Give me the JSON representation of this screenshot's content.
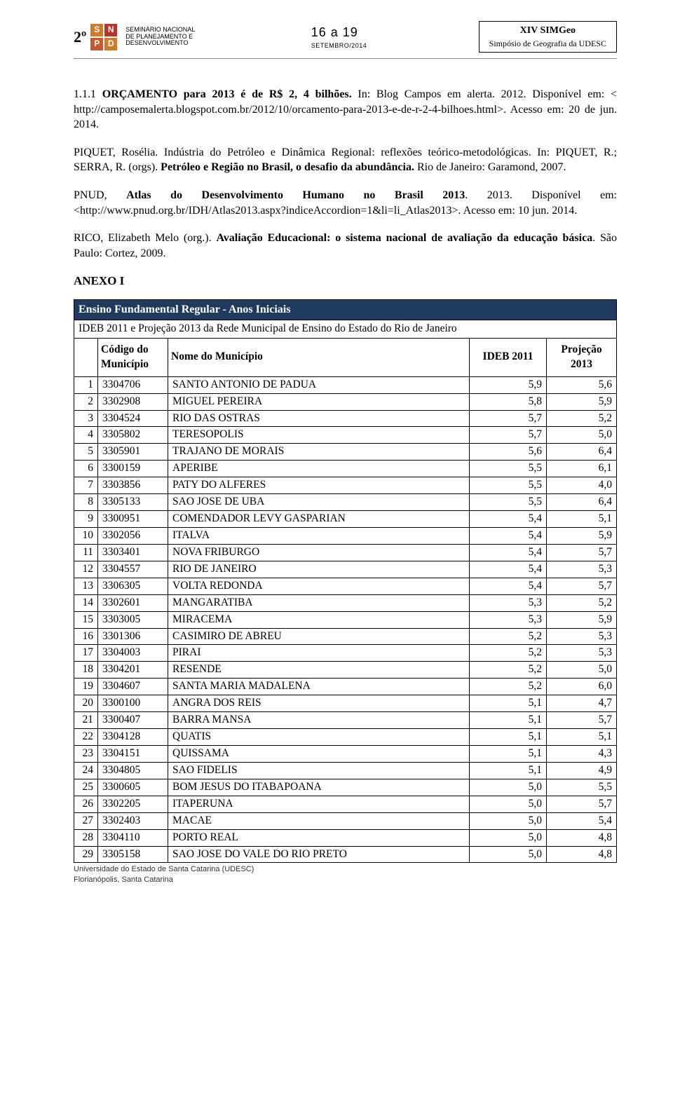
{
  "header": {
    "logo_prefix": "2º",
    "snpd_letters": [
      "S",
      "N",
      "P",
      "D"
    ],
    "snpd_colors": [
      "#d07a2a",
      "#b7332c",
      "#c9572f",
      "#d07a2a"
    ],
    "snpd_text": "SEMINÁRIO NACIONAL DE PLANEJAMENTO E DESENVOLVIMENTO",
    "dates": "16 a 19",
    "month": "SETEMBRO/2014",
    "box_line1": "XIV SIMGeo",
    "box_line2": "Simpósio de Geografia da UDESC"
  },
  "refs": {
    "p1_a": "1.1.1 ",
    "p1_b": "ORÇAMENTO para 2013 é de R$ 2, 4 bilhões.",
    "p1_c": " In: Blog Campos em alerta. 2012. Disponível em: < http://camposemalerta.blogspot.com.br/2012/10/orcamento-para-2013-e-de-r-2-4-bilhoes.html>. Acesso em: 20 de jun. 2014.",
    "p2_a": "PIQUET, Rosélia. Indústria do Petróleo e Dinâmica Regional: reflexões teórico-metodológicas. In: PIQUET, R.; SERRA, R. (orgs). ",
    "p2_b": "Petróleo e Região no Brasil, o desafio da abundância.",
    "p2_c": " Rio de Janeiro: Garamond, 2007.",
    "p3_a": "PNUD, ",
    "p3_b": "Atlas do Desenvolvimento Humano no Brasil 2013",
    "p3_c": ". 2013. Disponível em: <http://www.pnud.org.br/IDH/Atlas2013.aspx?indiceAccordion=1&li=li_Atlas2013>. Acesso em: 10 jun. 2014.",
    "p4_a": "RICO, Elizabeth Melo (org.). ",
    "p4_b": "Avaliação Educacional: o sistema nacional de avaliação da educação básica",
    "p4_c": ". São Paulo: Cortez, 2009.",
    "anexo": "ANEXO I"
  },
  "table": {
    "banner": "Ensino Fundamental Regular - Anos Iniciais",
    "subtitle": "IDEB 2011 e Projeção 2013 da Rede Municipal de Ensino do Estado do Rio de Janeiro",
    "head_codigo": "Código do Município",
    "head_nome": "Nome do Município",
    "head_ideb": "IDEB 2011",
    "head_proj": "Projeção 2013",
    "rows": [
      {
        "i": "1",
        "c": "3304706",
        "n": "SANTO ANTONIO DE PADUA",
        "d": "5,9",
        "p": "5,6"
      },
      {
        "i": "2",
        "c": "3302908",
        "n": "MIGUEL PEREIRA",
        "d": "5,8",
        "p": "5,9"
      },
      {
        "i": "3",
        "c": "3304524",
        "n": "RIO DAS OSTRAS",
        "d": "5,7",
        "p": "5,2"
      },
      {
        "i": "4",
        "c": "3305802",
        "n": "TERESOPOLIS",
        "d": "5,7",
        "p": "5,0"
      },
      {
        "i": "5",
        "c": "3305901",
        "n": "TRAJANO DE MORAIS",
        "d": "5,6",
        "p": "6,4"
      },
      {
        "i": "6",
        "c": "3300159",
        "n": "APERIBE",
        "d": "5,5",
        "p": "6,1"
      },
      {
        "i": "7",
        "c": "3303856",
        "n": "PATY DO ALFERES",
        "d": "5,5",
        "p": "4,0"
      },
      {
        "i": "8",
        "c": "3305133",
        "n": "SAO JOSE DE UBA",
        "d": "5,5",
        "p": "6,4"
      },
      {
        "i": "9",
        "c": "3300951",
        "n": "COMENDADOR LEVY GASPARIAN",
        "d": "5,4",
        "p": "5,1"
      },
      {
        "i": "10",
        "c": "3302056",
        "n": "ITALVA",
        "d": "5,4",
        "p": "5,9"
      },
      {
        "i": "11",
        "c": "3303401",
        "n": "NOVA FRIBURGO",
        "d": "5,4",
        "p": "5,7"
      },
      {
        "i": "12",
        "c": "3304557",
        "n": "RIO DE JANEIRO",
        "d": "5,4",
        "p": "5,3"
      },
      {
        "i": "13",
        "c": "3306305",
        "n": "VOLTA REDONDA",
        "d": "5,4",
        "p": "5,7"
      },
      {
        "i": "14",
        "c": "3302601",
        "n": "MANGARATIBA",
        "d": "5,3",
        "p": "5,2"
      },
      {
        "i": "15",
        "c": "3303005",
        "n": "MIRACEMA",
        "d": "5,3",
        "p": "5,9"
      },
      {
        "i": "16",
        "c": "3301306",
        "n": "CASIMIRO DE ABREU",
        "d": "5,2",
        "p": "5,3"
      },
      {
        "i": "17",
        "c": "3304003",
        "n": "PIRAI",
        "d": "5,2",
        "p": "5,3"
      },
      {
        "i": "18",
        "c": "3304201",
        "n": "RESENDE",
        "d": "5,2",
        "p": "5,0"
      },
      {
        "i": "19",
        "c": "3304607",
        "n": "SANTA MARIA MADALENA",
        "d": "5,2",
        "p": "6,0"
      },
      {
        "i": "20",
        "c": "3300100",
        "n": "ANGRA DOS REIS",
        "d": "5,1",
        "p": "4,7"
      },
      {
        "i": "21",
        "c": "3300407",
        "n": "BARRA MANSA",
        "d": "5,1",
        "p": "5,7"
      },
      {
        "i": "22",
        "c": "3304128",
        "n": "QUATIS",
        "d": "5,1",
        "p": "5,1"
      },
      {
        "i": "23",
        "c": "3304151",
        "n": "QUISSAMA",
        "d": "5,1",
        "p": "4,3"
      },
      {
        "i": "24",
        "c": "3304805",
        "n": "SAO FIDELIS",
        "d": "5,1",
        "p": "4,9"
      },
      {
        "i": "25",
        "c": "3300605",
        "n": "BOM JESUS DO ITABAPOANA",
        "d": "5,0",
        "p": "5,5"
      },
      {
        "i": "26",
        "c": "3302205",
        "n": "ITAPERUNA",
        "d": "5,0",
        "p": "5,7"
      },
      {
        "i": "27",
        "c": "3302403",
        "n": "MACAE",
        "d": "5,0",
        "p": "5,4"
      },
      {
        "i": "28",
        "c": "3304110",
        "n": "PORTO REAL",
        "d": "5,0",
        "p": "4,8"
      },
      {
        "i": "29",
        "c": "3305158",
        "n": "SAO JOSE DO VALE DO RIO PRETO",
        "d": "5,0",
        "p": "4,8"
      }
    ]
  },
  "footer": {
    "line1": "Universidade do Estado de Santa Catarina (UDESC)",
    "line2": "Florianópolis, Santa Catarina"
  }
}
